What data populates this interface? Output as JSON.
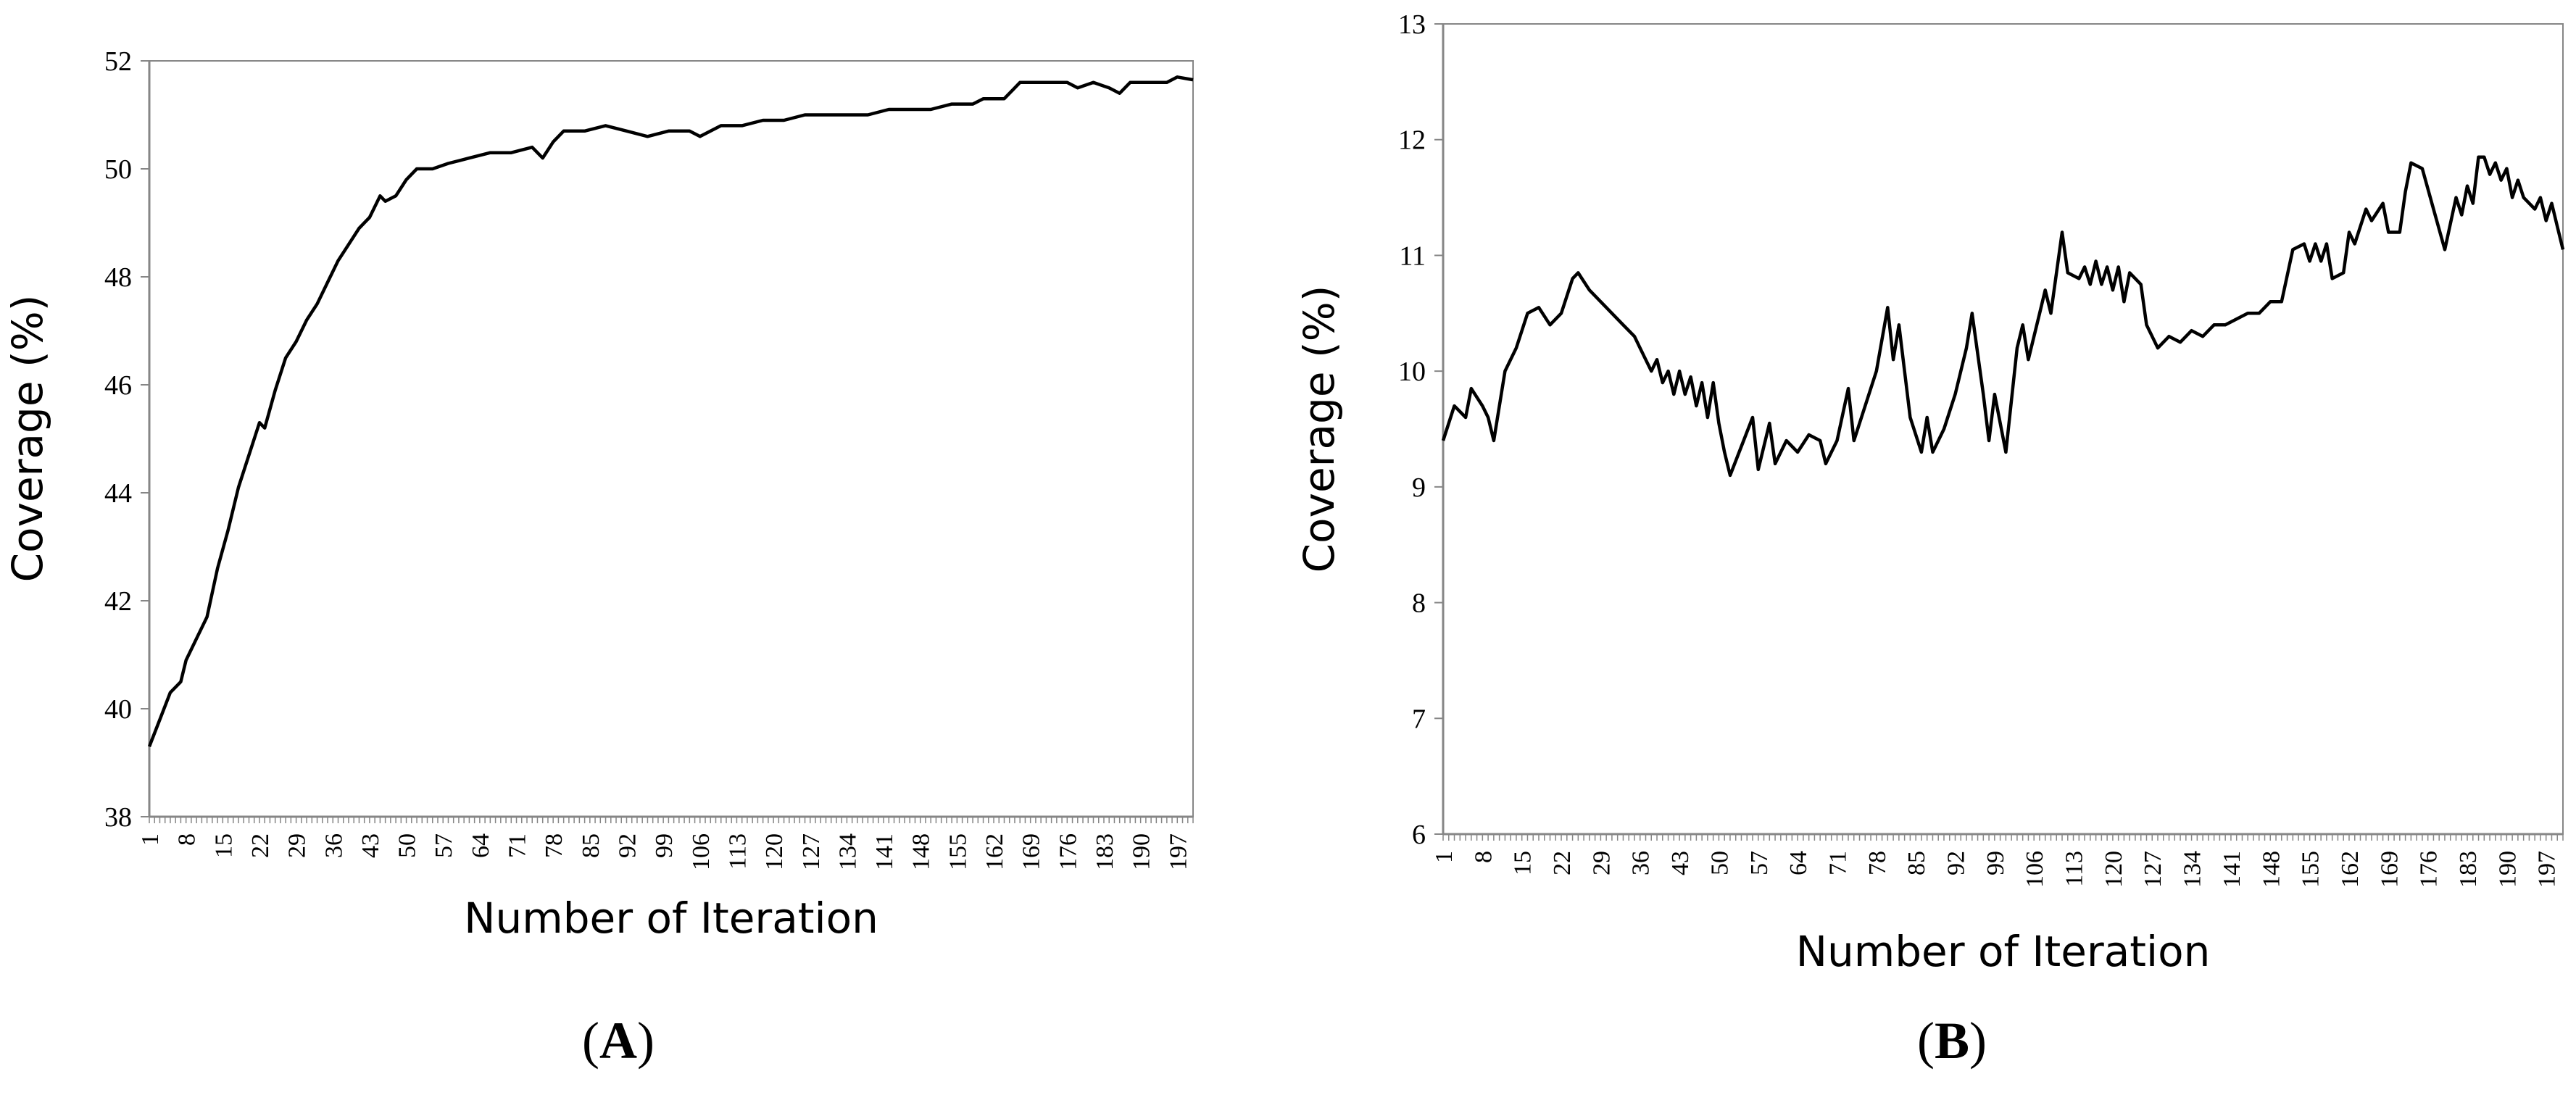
{
  "chart_data": [
    {
      "type": "line",
      "panel_label": "A",
      "xlabel": "Number of Iteration",
      "ylabel": "Coverage (%)",
      "ylim": [
        38,
        52
      ],
      "yticks": [
        38,
        40,
        42,
        44,
        46,
        48,
        50,
        52
      ],
      "xlim": [
        1,
        200
      ],
      "xticks": [
        1,
        8,
        15,
        22,
        29,
        36,
        43,
        50,
        57,
        64,
        71,
        78,
        85,
        92,
        99,
        106,
        113,
        120,
        127,
        134,
        141,
        148,
        155,
        162,
        169,
        176,
        183,
        190,
        197
      ],
      "grid": false,
      "series": [
        {
          "color": "#000000",
          "points": [
            [
              1,
              39.3
            ],
            [
              3,
              39.8
            ],
            [
              5,
              40.3
            ],
            [
              7,
              40.5
            ],
            [
              8,
              40.9
            ],
            [
              10,
              41.3
            ],
            [
              12,
              41.7
            ],
            [
              14,
              42.6
            ],
            [
              16,
              43.3
            ],
            [
              18,
              44.1
            ],
            [
              20,
              44.7
            ],
            [
              22,
              45.3
            ],
            [
              23,
              45.2
            ],
            [
              25,
              45.9
            ],
            [
              27,
              46.5
            ],
            [
              29,
              46.8
            ],
            [
              31,
              47.2
            ],
            [
              33,
              47.5
            ],
            [
              35,
              47.9
            ],
            [
              37,
              48.3
            ],
            [
              39,
              48.6
            ],
            [
              41,
              48.9
            ],
            [
              43,
              49.1
            ],
            [
              45,
              49.5
            ],
            [
              46,
              49.4
            ],
            [
              48,
              49.5
            ],
            [
              50,
              49.8
            ],
            [
              52,
              50.0
            ],
            [
              55,
              50.0
            ],
            [
              58,
              50.1
            ],
            [
              62,
              50.2
            ],
            [
              66,
              50.3
            ],
            [
              70,
              50.3
            ],
            [
              74,
              50.4
            ],
            [
              76,
              50.2
            ],
            [
              78,
              50.5
            ],
            [
              80,
              50.7
            ],
            [
              84,
              50.7
            ],
            [
              88,
              50.8
            ],
            [
              92,
              50.7
            ],
            [
              96,
              50.6
            ],
            [
              100,
              50.7
            ],
            [
              104,
              50.7
            ],
            [
              106,
              50.6
            ],
            [
              110,
              50.8
            ],
            [
              114,
              50.8
            ],
            [
              118,
              50.9
            ],
            [
              122,
              50.9
            ],
            [
              126,
              51.0
            ],
            [
              130,
              51.0
            ],
            [
              134,
              51.0
            ],
            [
              138,
              51.0
            ],
            [
              142,
              51.1
            ],
            [
              146,
              51.1
            ],
            [
              150,
              51.1
            ],
            [
              154,
              51.2
            ],
            [
              158,
              51.2
            ],
            [
              160,
              51.3
            ],
            [
              164,
              51.3
            ],
            [
              167,
              51.6
            ],
            [
              170,
              51.6
            ],
            [
              173,
              51.6
            ],
            [
              176,
              51.6
            ],
            [
              178,
              51.5
            ],
            [
              181,
              51.6
            ],
            [
              184,
              51.5
            ],
            [
              186,
              51.4
            ],
            [
              188,
              51.6
            ],
            [
              192,
              51.6
            ],
            [
              195,
              51.6
            ],
            [
              197,
              51.7
            ],
            [
              200,
              51.65
            ]
          ]
        }
      ]
    },
    {
      "type": "line",
      "panel_label": "B",
      "xlabel": "Number of Iteration",
      "ylabel": "Coverage (%)",
      "ylim": [
        6,
        13
      ],
      "yticks": [
        6,
        7,
        8,
        9,
        10,
        11,
        12,
        13
      ],
      "xlim": [
        1,
        200
      ],
      "xticks": [
        1,
        8,
        15,
        22,
        29,
        36,
        43,
        50,
        57,
        64,
        71,
        78,
        85,
        92,
        99,
        106,
        113,
        120,
        127,
        134,
        141,
        148,
        155,
        162,
        169,
        176,
        183,
        190,
        197
      ],
      "grid": false,
      "series": [
        {
          "color": "#000000",
          "points": [
            [
              1,
              9.4
            ],
            [
              3,
              9.7
            ],
            [
              5,
              9.6
            ],
            [
              6,
              9.85
            ],
            [
              8,
              9.7
            ],
            [
              9,
              9.6
            ],
            [
              10,
              9.4
            ],
            [
              12,
              10.0
            ],
            [
              14,
              10.2
            ],
            [
              16,
              10.5
            ],
            [
              18,
              10.55
            ],
            [
              20,
              10.4
            ],
            [
              22,
              10.5
            ],
            [
              24,
              10.8
            ],
            [
              25,
              10.85
            ],
            [
              27,
              10.7
            ],
            [
              29,
              10.6
            ],
            [
              31,
              10.5
            ],
            [
              33,
              10.4
            ],
            [
              35,
              10.3
            ],
            [
              36,
              10.2
            ],
            [
              37,
              10.1
            ],
            [
              38,
              10.0
            ],
            [
              39,
              10.1
            ],
            [
              40,
              9.9
            ],
            [
              41,
              10.0
            ],
            [
              42,
              9.8
            ],
            [
              43,
              10.0
            ],
            [
              44,
              9.8
            ],
            [
              45,
              9.95
            ],
            [
              46,
              9.7
            ],
            [
              47,
              9.9
            ],
            [
              48,
              9.6
            ],
            [
              49,
              9.9
            ],
            [
              50,
              9.55
            ],
            [
              51,
              9.3
            ],
            [
              52,
              9.1
            ],
            [
              54,
              9.35
            ],
            [
              56,
              9.6
            ],
            [
              57,
              9.15
            ],
            [
              59,
              9.55
            ],
            [
              60,
              9.2
            ],
            [
              62,
              9.4
            ],
            [
              64,
              9.3
            ],
            [
              66,
              9.45
            ],
            [
              68,
              9.4
            ],
            [
              69,
              9.2
            ],
            [
              71,
              9.4
            ],
            [
              73,
              9.85
            ],
            [
              74,
              9.4
            ],
            [
              76,
              9.7
            ],
            [
              78,
              10.0
            ],
            [
              80,
              10.55
            ],
            [
              81,
              10.1
            ],
            [
              82,
              10.4
            ],
            [
              84,
              9.6
            ],
            [
              86,
              9.3
            ],
            [
              87,
              9.6
            ],
            [
              88,
              9.3
            ],
            [
              90,
              9.5
            ],
            [
              92,
              9.8
            ],
            [
              94,
              10.2
            ],
            [
              95,
              10.5
            ],
            [
              97,
              9.8
            ],
            [
              98,
              9.4
            ],
            [
              99,
              9.8
            ],
            [
              101,
              9.3
            ],
            [
              103,
              10.2
            ],
            [
              104,
              10.4
            ],
            [
              105,
              10.1
            ],
            [
              107,
              10.5
            ],
            [
              108,
              10.7
            ],
            [
              109,
              10.5
            ],
            [
              111,
              11.2
            ],
            [
              112,
              10.85
            ],
            [
              114,
              10.8
            ],
            [
              115,
              10.9
            ],
            [
              116,
              10.75
            ],
            [
              117,
              10.95
            ],
            [
              118,
              10.75
            ],
            [
              119,
              10.9
            ],
            [
              120,
              10.7
            ],
            [
              121,
              10.9
            ],
            [
              122,
              10.6
            ],
            [
              123,
              10.85
            ],
            [
              125,
              10.75
            ],
            [
              126,
              10.4
            ],
            [
              128,
              10.2
            ],
            [
              130,
              10.3
            ],
            [
              132,
              10.25
            ],
            [
              134,
              10.35
            ],
            [
              136,
              10.3
            ],
            [
              138,
              10.4
            ],
            [
              140,
              10.4
            ],
            [
              142,
              10.45
            ],
            [
              144,
              10.5
            ],
            [
              146,
              10.5
            ],
            [
              148,
              10.6
            ],
            [
              150,
              10.6
            ],
            [
              152,
              11.05
            ],
            [
              154,
              11.1
            ],
            [
              155,
              10.95
            ],
            [
              156,
              11.1
            ],
            [
              157,
              10.95
            ],
            [
              158,
              11.1
            ],
            [
              159,
              10.8
            ],
            [
              161,
              10.85
            ],
            [
              162,
              11.2
            ],
            [
              163,
              11.1
            ],
            [
              165,
              11.4
            ],
            [
              166,
              11.3
            ],
            [
              168,
              11.45
            ],
            [
              169,
              11.2
            ],
            [
              171,
              11.2
            ],
            [
              172,
              11.55
            ],
            [
              173,
              11.8
            ],
            [
              175,
              11.75
            ],
            [
              177,
              11.4
            ],
            [
              179,
              11.05
            ],
            [
              181,
              11.5
            ],
            [
              182,
              11.35
            ],
            [
              183,
              11.6
            ],
            [
              184,
              11.45
            ],
            [
              185,
              11.85
            ],
            [
              186,
              11.85
            ],
            [
              187,
              11.7
            ],
            [
              188,
              11.8
            ],
            [
              189,
              11.65
            ],
            [
              190,
              11.75
            ],
            [
              191,
              11.5
            ],
            [
              192,
              11.65
            ],
            [
              193,
              11.5
            ],
            [
              195,
              11.4
            ],
            [
              196,
              11.5
            ],
            [
              197,
              11.3
            ],
            [
              198,
              11.45
            ],
            [
              199,
              11.25
            ],
            [
              200,
              11.05
            ]
          ]
        }
      ]
    }
  ]
}
